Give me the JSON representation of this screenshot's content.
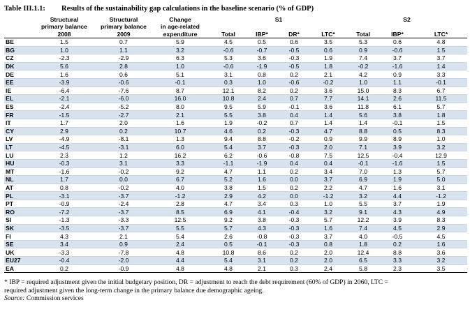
{
  "title": {
    "number": "Table III.1.1:",
    "text": "Results of the sustainability gap calculations in the baseline scenario (% of  GDP)"
  },
  "headers": {
    "col1": [
      "Structural",
      "primary balance",
      "2008"
    ],
    "col2": [
      "Structural",
      "primary balance",
      "2009"
    ],
    "col3": [
      "Change",
      "in age-related",
      "expenditure"
    ],
    "s1_label": "S1",
    "s2_label": "S2",
    "s1_cols": [
      "Total",
      "IBP*",
      "DR*",
      "LTC*"
    ],
    "s2_cols": [
      "Total",
      "IBP*",
      "LTC*"
    ]
  },
  "rows": [
    [
      "BE",
      "1.5",
      "0.7",
      "5.9",
      "4.5",
      "0.5",
      "0.6",
      "3.5",
      "5.3",
      "0.6",
      "4.8"
    ],
    [
      "BG",
      "1.0",
      "1.1",
      "3.2",
      "-0.6",
      "-0.7",
      "-0.5",
      "0.6",
      "0.9",
      "-0.6",
      "1.5"
    ],
    [
      "CZ",
      "-2.3",
      "-2.9",
      "6.3",
      "5.3",
      "3.6",
      "-0.3",
      "1.9",
      "7.4",
      "3.7",
      "3.7"
    ],
    [
      "DK",
      "5.6",
      "2.8",
      "1.0",
      "-0.6",
      "-1.9",
      "-0.5",
      "1.8",
      "-0.2",
      "-1.6",
      "1.4"
    ],
    [
      "DE",
      "1.6",
      "0.6",
      "5.1",
      "3.1",
      "0.8",
      "0.2",
      "2.1",
      "4.2",
      "0.9",
      "3.3"
    ],
    [
      "EE",
      "-3.9",
      "-0.6",
      "-0.1",
      "0.3",
      "1.0",
      "-0.6",
      "-0.2",
      "1.0",
      "1.1",
      "-0.1"
    ],
    [
      "IE",
      "-6.4",
      "-7.6",
      "8.7",
      "12.1",
      "8.2",
      "0.2",
      "3.6",
      "15.0",
      "8.3",
      "6.7"
    ],
    [
      "EL",
      "-2.1",
      "-6.0",
      "16.0",
      "10.8",
      "2.4",
      "0.7",
      "7.7",
      "14.1",
      "2.6",
      "11.5"
    ],
    [
      "ES",
      "-2.4",
      "-5.2",
      "8.0",
      "9.5",
      "5.9",
      "-0.1",
      "3.6",
      "11.8",
      "6.1",
      "5.7"
    ],
    [
      "FR",
      "-1.5",
      "-2.7",
      "2.1",
      "5.5",
      "3.8",
      "0.4",
      "1.4",
      "5.6",
      "3.8",
      "1.8"
    ],
    [
      "IT",
      "1.7",
      "2.0",
      "1.6",
      "1.9",
      "-0.2",
      "0.7",
      "1.4",
      "1.4",
      "-0.1",
      "1.5"
    ],
    [
      "CY",
      "2.9",
      "0.2",
      "10.7",
      "4.6",
      "0.2",
      "-0.3",
      "4.7",
      "8.8",
      "0.5",
      "8.3"
    ],
    [
      "LV",
      "-4.9",
      "-8.1",
      "1.3",
      "9.4",
      "8.8",
      "-0.2",
      "0.9",
      "9.9",
      "8.9",
      "1.0"
    ],
    [
      "LT",
      "-4.5",
      "-3.1",
      "6.0",
      "5.4",
      "3.7",
      "-0.3",
      "2.0",
      "7.1",
      "3.9",
      "3.2"
    ],
    [
      "LU",
      "2.3",
      "1.2",
      "16.2",
      "6.2",
      "-0.6",
      "-0.8",
      "7.5",
      "12.5",
      "-0.4",
      "12.9"
    ],
    [
      "HU",
      "-0.3",
      "3.1",
      "3.3",
      "-1.1",
      "-1.9",
      "0.4",
      "0.4",
      "-0.1",
      "-1.6",
      "1.5"
    ],
    [
      "MT",
      "-1.6",
      "-0.2",
      "9.2",
      "4.7",
      "1.1",
      "0.2",
      "3.4",
      "7.0",
      "1.3",
      "5.7"
    ],
    [
      "NL",
      "1.7",
      "0.0",
      "6.7",
      "5.2",
      "1.6",
      "0.0",
      "3.7",
      "6.9",
      "1.9",
      "5.0"
    ],
    [
      "AT",
      "0.8",
      "-0.2",
      "4.0",
      "3.8",
      "1.5",
      "0.2",
      "2.2",
      "4.7",
      "1.6",
      "3.1"
    ],
    [
      "PL",
      "-3.1",
      "-3.7",
      "-1.2",
      "2.9",
      "4.2",
      "0.0",
      "-1.2",
      "3.2",
      "4.4",
      "-1.2"
    ],
    [
      "PT",
      "-0.9",
      "-2.4",
      "2.8",
      "4.7",
      "3.4",
      "0.3",
      "1.0",
      "5.5",
      "3.7",
      "1.9"
    ],
    [
      "RO",
      "-7.2",
      "-3.7",
      "8.5",
      "6.9",
      "4.1",
      "-0.4",
      "3.2",
      "9.1",
      "4.3",
      "4.9"
    ],
    [
      "SI",
      "-1.3",
      "-3.3",
      "12.5",
      "9.2",
      "3.8",
      "-0.3",
      "5.7",
      "12.2",
      "3.9",
      "8.3"
    ],
    [
      "SK",
      "-3.5",
      "-3.7",
      "5.5",
      "5.7",
      "4.3",
      "-0.3",
      "1.6",
      "7.4",
      "4.5",
      "2.9"
    ],
    [
      "FI",
      "4.3",
      "2.1",
      "5.4",
      "2.6",
      "-0.8",
      "-0.3",
      "3.7",
      "4.0",
      "-0.5",
      "4.5"
    ],
    [
      "SE",
      "3.4",
      "0.9",
      "2.4",
      "0.5",
      "-0.1",
      "-0.3",
      "0.8",
      "1.8",
      "0.2",
      "1.6"
    ],
    [
      "UK",
      "-3.3",
      "-7.8",
      "4.8",
      "10.8",
      "8.6",
      "0.2",
      "2.0",
      "12.4",
      "8.8",
      "3.6"
    ],
    [
      "EU27",
      "-0.4",
      "-2.0",
      "4.4",
      "5.4",
      "3.1",
      "0.2",
      "2.0",
      "6.5",
      "3.3",
      "3.2"
    ],
    [
      "EA",
      "0.2",
      "-0.9",
      "4.8",
      "4.8",
      "2.1",
      "0.3",
      "2.4",
      "5.8",
      "2.3",
      "3.5"
    ]
  ],
  "footnote": {
    "line1": "* IBP = required adjustment given the  initial budgetary position, DR = adjustment to reach the debt requirement (60% of GDP) in 2060, LTC =",
    "line2": "required adjustment given the long-term change in the primary balance due demographic ageing.",
    "source_label": "Source:",
    "source_text": " Commission services"
  },
  "colors": {
    "row_shade": "#d9e3f0",
    "row_white": "#ffffff",
    "rule": "#000000"
  }
}
